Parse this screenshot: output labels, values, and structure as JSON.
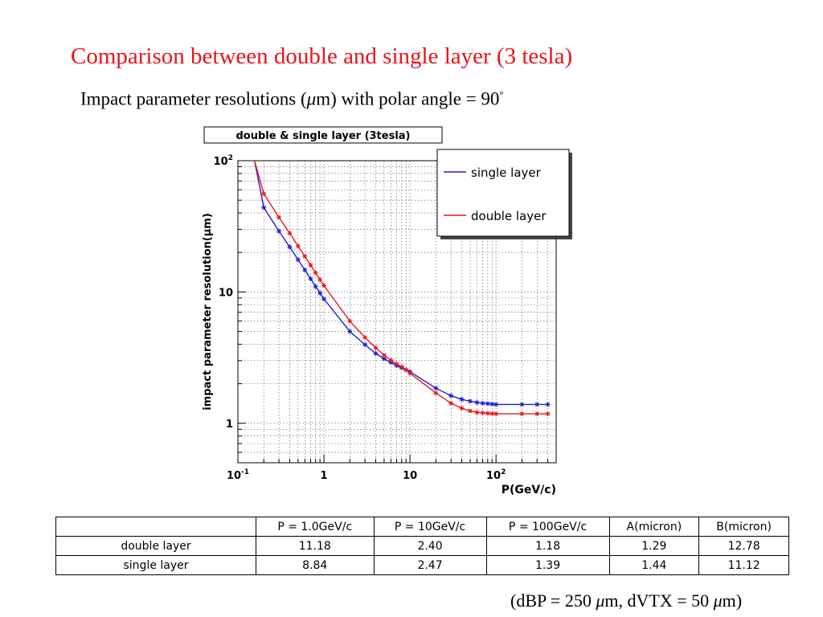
{
  "slide": {
    "title": "Comparison between double and single layer (3 tesla)",
    "subtitle_prefix": "Impact parameter resolutions (",
    "subtitle_mu": "μ",
    "subtitle_suffix": "m) with polar angle = 90",
    "subtitle_degree": "°",
    "footnote_part1": "(dBP = 250 ",
    "footnote_mu1": "μ",
    "footnote_part2": "m, dVTX = 50 ",
    "footnote_mu2": "μ",
    "footnote_part3": "m)"
  },
  "chart_data": {
    "type": "line",
    "title": "double & single layer (3tesla)",
    "xlabel": "P(GeV/c)",
    "ylabel": "impact parameter resolution(μm)",
    "xscale": "log",
    "yscale": "log",
    "xlim": [
      0.1,
      500
    ],
    "ylim": [
      0.5,
      100
    ],
    "x_ticks": [
      {
        "value": 0.1,
        "label": "10",
        "exp": "-1"
      },
      {
        "value": 1,
        "label": "1",
        "exp": ""
      },
      {
        "value": 10,
        "label": "10",
        "exp": ""
      },
      {
        "value": 100,
        "label": "10",
        "exp": "2"
      }
    ],
    "y_ticks": [
      {
        "value": 1,
        "label": "1",
        "exp": ""
      },
      {
        "value": 10,
        "label": "10",
        "exp": ""
      },
      {
        "value": 100,
        "label": "10",
        "exp": "2"
      }
    ],
    "grid": true,
    "legend_position": "top-right",
    "series": [
      {
        "name": "single layer",
        "color": "#1e1ed2",
        "x": [
          0.2,
          0.3,
          0.4,
          0.5,
          0.6,
          0.7,
          0.8,
          0.9,
          1,
          2,
          3,
          4,
          5,
          6,
          7,
          8,
          9,
          10,
          20,
          30,
          40,
          50,
          60,
          70,
          80,
          90,
          100,
          200,
          300,
          400
        ],
        "y": [
          44,
          29,
          22,
          17.6,
          14.7,
          12.6,
          11.0,
          9.8,
          8.84,
          5.0,
          3.97,
          3.4,
          3.1,
          2.9,
          2.75,
          2.65,
          2.55,
          2.47,
          1.85,
          1.62,
          1.52,
          1.47,
          1.44,
          1.42,
          1.41,
          1.4,
          1.39,
          1.39,
          1.39,
          1.39
        ]
      },
      {
        "name": "double layer",
        "color": "#e41a1c",
        "x": [
          0.2,
          0.3,
          0.4,
          0.5,
          0.6,
          0.7,
          0.8,
          0.9,
          1,
          2,
          3,
          4,
          5,
          6,
          7,
          8,
          9,
          10,
          20,
          30,
          40,
          50,
          60,
          70,
          80,
          90,
          100,
          200,
          300,
          400
        ],
        "y": [
          56,
          37,
          28,
          22.4,
          18.7,
          16.0,
          14.0,
          12.4,
          11.18,
          6.0,
          4.5,
          3.75,
          3.3,
          3.02,
          2.83,
          2.68,
          2.55,
          2.4,
          1.7,
          1.42,
          1.3,
          1.24,
          1.21,
          1.2,
          1.19,
          1.185,
          1.18,
          1.18,
          1.18,
          1.18
        ]
      }
    ]
  },
  "table": {
    "headers": [
      "",
      "P = 1.0GeV/c",
      "P = 10GeV/c",
      "P = 100GeV/c",
      "A(micron)",
      "B(micron)"
    ],
    "rows": [
      [
        "double layer",
        "11.18",
        "2.40",
        "1.18",
        "1.29",
        "12.78"
      ],
      [
        "single layer",
        "8.84",
        "2.47",
        "1.39",
        "1.44",
        "11.12"
      ]
    ]
  }
}
